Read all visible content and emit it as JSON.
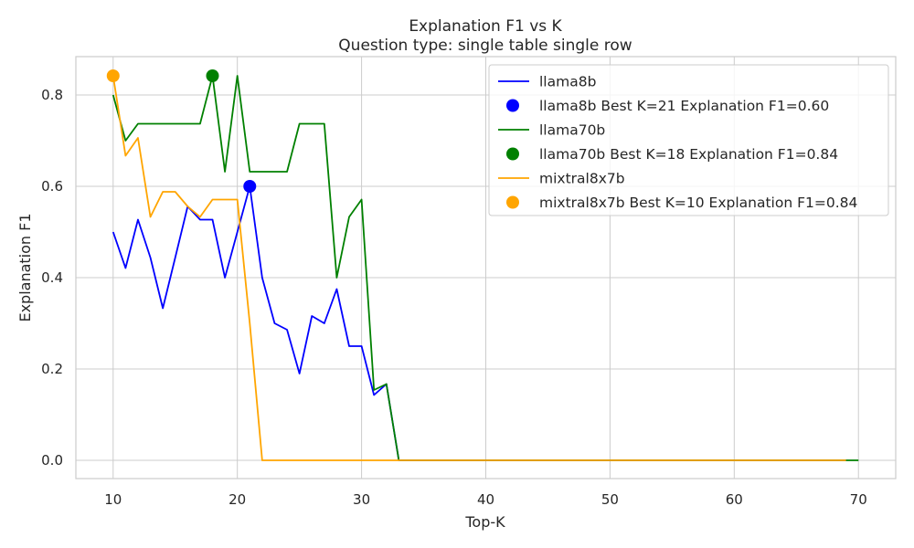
{
  "chart_data": {
    "type": "line",
    "title": "Explanation F1 vs K",
    "subtitle": "Question type: single table single row",
    "xlabel": "Top-K",
    "ylabel": "Explanation F1",
    "xlim": [
      7,
      73
    ],
    "ylim": [
      -0.04,
      0.884
    ],
    "xticks": [
      10,
      20,
      30,
      40,
      50,
      60,
      70
    ],
    "yticks": [
      0.0,
      0.2,
      0.4,
      0.6,
      0.8
    ],
    "xtick_labels": [
      "10",
      "20",
      "30",
      "40",
      "50",
      "60",
      "70"
    ],
    "ytick_labels": [
      "0.0",
      "0.2",
      "0.4",
      "0.6",
      "0.8"
    ],
    "grid": true,
    "legend_position": "top-right",
    "series": [
      {
        "name": "llama8b",
        "color": "#0000ff",
        "x": [
          10,
          11,
          12,
          13,
          14,
          15,
          16,
          17,
          18,
          19,
          20,
          21,
          22,
          23,
          24,
          25,
          26,
          27,
          28,
          29,
          30,
          31,
          32,
          33,
          34,
          35,
          36,
          37,
          38,
          39,
          40,
          41,
          42,
          43,
          44,
          45,
          46,
          47,
          48,
          49,
          50,
          51,
          52,
          53,
          54,
          55,
          56,
          57,
          58,
          59,
          60,
          61,
          62,
          63,
          64,
          65,
          66,
          67,
          68,
          69
        ],
        "y": [
          0.5,
          0.421,
          0.527,
          0.444,
          0.333,
          0.444,
          0.556,
          0.527,
          0.527,
          0.4,
          0.5,
          0.6,
          0.4,
          0.3,
          0.286,
          0.19,
          0.316,
          0.3,
          0.375,
          0.25,
          0.25,
          0.143,
          0.167,
          0,
          0,
          0,
          0,
          0,
          0,
          0,
          0,
          0,
          0,
          0,
          0,
          0,
          0,
          0,
          0,
          0,
          0,
          0,
          0,
          0,
          0,
          0,
          0,
          0,
          0,
          0,
          0,
          0,
          0,
          0,
          0,
          0,
          0,
          0,
          0,
          0
        ]
      },
      {
        "name": "llama70b",
        "color": "#008000",
        "x": [
          10,
          11,
          12,
          13,
          14,
          15,
          16,
          17,
          18,
          19,
          20,
          21,
          22,
          23,
          24,
          25,
          26,
          27,
          28,
          29,
          30,
          31,
          32,
          33,
          34,
          35,
          36,
          37,
          38,
          39,
          40,
          41,
          42,
          43,
          44,
          45,
          46,
          47,
          48,
          49,
          50,
          51,
          52,
          53,
          54,
          55,
          56,
          57,
          58,
          59,
          60,
          61,
          62,
          63,
          64,
          65,
          66,
          67,
          68,
          69,
          70
        ],
        "y": [
          0.8,
          0.7,
          0.737,
          0.737,
          0.737,
          0.737,
          0.737,
          0.737,
          0.842,
          0.632,
          0.842,
          0.632,
          0.632,
          0.632,
          0.632,
          0.737,
          0.737,
          0.737,
          0.4,
          0.533,
          0.571,
          0.154,
          0.167,
          0,
          0,
          0,
          0,
          0,
          0,
          0,
          0,
          0,
          0,
          0,
          0,
          0,
          0,
          0,
          0,
          0,
          0,
          0,
          0,
          0,
          0,
          0,
          0,
          0,
          0,
          0,
          0,
          0,
          0,
          0,
          0,
          0,
          0,
          0,
          0,
          0,
          0
        ]
      },
      {
        "name": "mixtral8x7b",
        "color": "#ffa500",
        "x": [
          10,
          11,
          12,
          13,
          14,
          15,
          16,
          17,
          18,
          19,
          20,
          21,
          22,
          23,
          24,
          25,
          26,
          27,
          28,
          29,
          30,
          31,
          32,
          33,
          34,
          35,
          36,
          37,
          38,
          39,
          40,
          41,
          42,
          43,
          44,
          45,
          46,
          47,
          48,
          49,
          50,
          51,
          52,
          53,
          54,
          55,
          56,
          57,
          58,
          59,
          60,
          61,
          62,
          63,
          64,
          65,
          66,
          67,
          68,
          69
        ],
        "y": [
          0.842,
          0.667,
          0.706,
          0.533,
          0.588,
          0.588,
          0.556,
          0.533,
          0.571,
          0.571,
          0.571,
          0.3,
          0,
          0,
          0,
          0,
          0,
          0,
          0,
          0,
          0,
          0,
          0,
          0,
          0,
          0,
          0,
          0,
          0,
          0,
          0,
          0,
          0,
          0,
          0,
          0,
          0,
          0,
          0,
          0,
          0,
          0,
          0,
          0,
          0,
          0,
          0,
          0,
          0,
          0,
          0,
          0,
          0,
          0,
          0,
          0,
          0,
          0,
          0,
          0
        ]
      }
    ],
    "best_points": [
      {
        "name": "llama8b Best K=21 Explanation F1=0.60",
        "color": "#0000ff",
        "x": 21,
        "y": 0.6
      },
      {
        "name": "llama70b Best K=18 Explanation F1=0.84",
        "color": "#008000",
        "x": 18,
        "y": 0.842
      },
      {
        "name": "mixtral8x7b Best K=10 Explanation F1=0.84",
        "color": "#ffa500",
        "x": 10,
        "y": 0.842
      }
    ],
    "legend": [
      {
        "label": "llama8b",
        "kind": "line",
        "color": "#0000ff"
      },
      {
        "label": "llama8b Best K=21 Explanation F1=0.60",
        "kind": "marker",
        "color": "#0000ff"
      },
      {
        "label": "llama70b",
        "kind": "line",
        "color": "#008000"
      },
      {
        "label": "llama70b Best K=18 Explanation F1=0.84",
        "kind": "marker",
        "color": "#008000"
      },
      {
        "label": "mixtral8x7b",
        "kind": "line",
        "color": "#ffa500"
      },
      {
        "label": "mixtral8x7b Best K=10 Explanation F1=0.84",
        "kind": "marker",
        "color": "#ffa500"
      }
    ]
  }
}
